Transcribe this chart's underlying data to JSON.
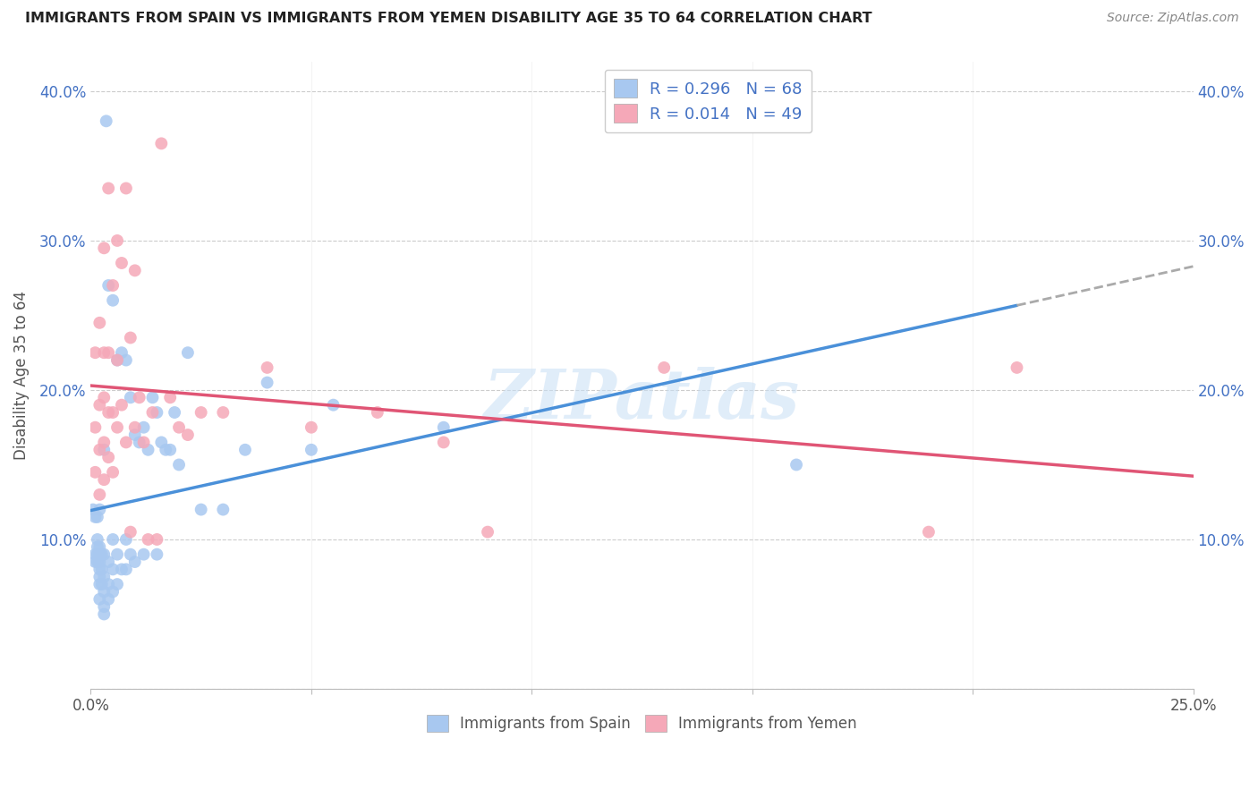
{
  "title": "IMMIGRANTS FROM SPAIN VS IMMIGRANTS FROM YEMEN DISABILITY AGE 35 TO 64 CORRELATION CHART",
  "source": "Source: ZipAtlas.com",
  "ylabel": "Disability Age 35 to 64",
  "xlim": [
    0.0,
    0.25
  ],
  "ylim": [
    0.0,
    0.42
  ],
  "legend_labels": [
    "Immigrants from Spain",
    "Immigrants from Yemen"
  ],
  "R_spain": 0.296,
  "N_spain": 68,
  "R_yemen": 0.014,
  "N_yemen": 49,
  "color_spain": "#A8C8F0",
  "color_yemen": "#F5A8B8",
  "color_spain_line": "#4A90D9",
  "color_yemen_line": "#E05575",
  "watermark": "ZIPatlas",
  "spain_x": [
    0.0005,
    0.001,
    0.001,
    0.001,
    0.0015,
    0.0015,
    0.0015,
    0.0015,
    0.0015,
    0.002,
    0.002,
    0.002,
    0.002,
    0.002,
    0.002,
    0.002,
    0.002,
    0.0025,
    0.0025,
    0.0025,
    0.003,
    0.003,
    0.003,
    0.003,
    0.003,
    0.003,
    0.0035,
    0.004,
    0.004,
    0.004,
    0.004,
    0.005,
    0.005,
    0.005,
    0.005,
    0.006,
    0.006,
    0.006,
    0.007,
    0.007,
    0.008,
    0.008,
    0.008,
    0.009,
    0.009,
    0.01,
    0.01,
    0.011,
    0.012,
    0.012,
    0.013,
    0.014,
    0.015,
    0.015,
    0.016,
    0.017,
    0.018,
    0.019,
    0.02,
    0.022,
    0.025,
    0.03,
    0.035,
    0.04,
    0.05,
    0.055,
    0.08,
    0.16
  ],
  "spain_y": [
    0.12,
    0.085,
    0.09,
    0.115,
    0.085,
    0.09,
    0.095,
    0.1,
    0.115,
    0.06,
    0.07,
    0.075,
    0.08,
    0.085,
    0.09,
    0.095,
    0.12,
    0.07,
    0.08,
    0.09,
    0.05,
    0.055,
    0.065,
    0.075,
    0.09,
    0.16,
    0.38,
    0.06,
    0.07,
    0.085,
    0.27,
    0.065,
    0.08,
    0.1,
    0.26,
    0.07,
    0.09,
    0.22,
    0.08,
    0.225,
    0.08,
    0.1,
    0.22,
    0.09,
    0.195,
    0.085,
    0.17,
    0.165,
    0.09,
    0.175,
    0.16,
    0.195,
    0.09,
    0.185,
    0.165,
    0.16,
    0.16,
    0.185,
    0.15,
    0.225,
    0.12,
    0.12,
    0.16,
    0.205,
    0.16,
    0.19,
    0.175,
    0.15
  ],
  "yemen_x": [
    0.001,
    0.001,
    0.001,
    0.002,
    0.002,
    0.002,
    0.002,
    0.003,
    0.003,
    0.003,
    0.003,
    0.003,
    0.004,
    0.004,
    0.004,
    0.004,
    0.005,
    0.005,
    0.005,
    0.006,
    0.006,
    0.006,
    0.007,
    0.007,
    0.008,
    0.008,
    0.009,
    0.009,
    0.01,
    0.01,
    0.011,
    0.012,
    0.013,
    0.014,
    0.015,
    0.016,
    0.018,
    0.02,
    0.022,
    0.025,
    0.03,
    0.04,
    0.05,
    0.065,
    0.08,
    0.09,
    0.13,
    0.19,
    0.21
  ],
  "yemen_y": [
    0.145,
    0.175,
    0.225,
    0.13,
    0.16,
    0.19,
    0.245,
    0.14,
    0.165,
    0.195,
    0.225,
    0.295,
    0.155,
    0.185,
    0.225,
    0.335,
    0.145,
    0.185,
    0.27,
    0.175,
    0.22,
    0.3,
    0.19,
    0.285,
    0.165,
    0.335,
    0.105,
    0.235,
    0.175,
    0.28,
    0.195,
    0.165,
    0.1,
    0.185,
    0.1,
    0.365,
    0.195,
    0.175,
    0.17,
    0.185,
    0.185,
    0.215,
    0.175,
    0.185,
    0.165,
    0.105,
    0.215,
    0.105,
    0.215
  ]
}
